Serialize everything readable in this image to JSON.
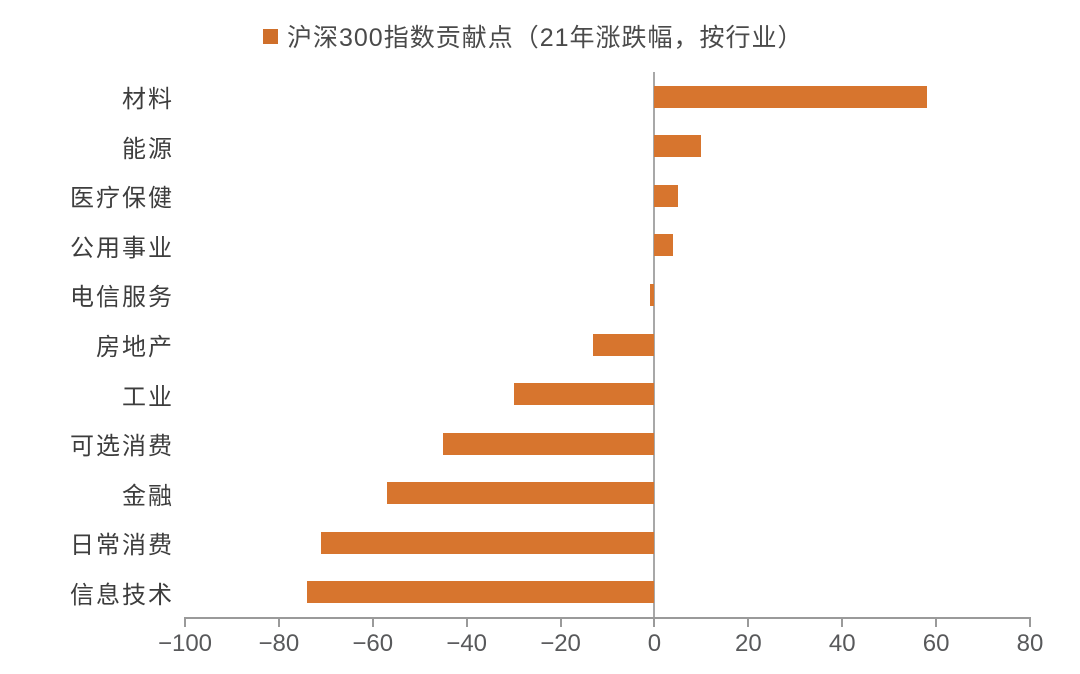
{
  "chart_data": {
    "type": "bar",
    "orientation": "horizontal",
    "title": "",
    "legend_label": "沪深300指数贡献点（21年涨跌幅，按行业）",
    "legend_position": "top",
    "categories": [
      "材料",
      "能源",
      "医疗保健",
      "公用事业",
      "电信服务",
      "房地产",
      "工业",
      "可选消费",
      "金融",
      "日常消费",
      "信息技术"
    ],
    "values": [
      58,
      10,
      5,
      4,
      -1,
      -13,
      -30,
      -45,
      -57,
      -71,
      -74
    ],
    "xlabel": "",
    "ylabel": "",
    "xlim": [
      -100,
      80
    ],
    "xticks": [
      -100,
      -80,
      -60,
      -40,
      -20,
      0,
      20,
      40,
      60,
      80
    ],
    "xtick_labels": [
      "−100",
      "−80",
      "−60",
      "−40",
      "−20",
      "0",
      "20",
      "40",
      "60",
      "80"
    ],
    "grid": false
  },
  "colors": {
    "bar": "#D7752E",
    "legend_swatch": "#CF6F2A",
    "axis_line": "#9a9a9a",
    "zero_line": "#a8a8a8",
    "tick_label": "#58595b",
    "category_label": "#3d3d3d",
    "legend_text": "#4a4a4a",
    "background": "#ffffff"
  }
}
